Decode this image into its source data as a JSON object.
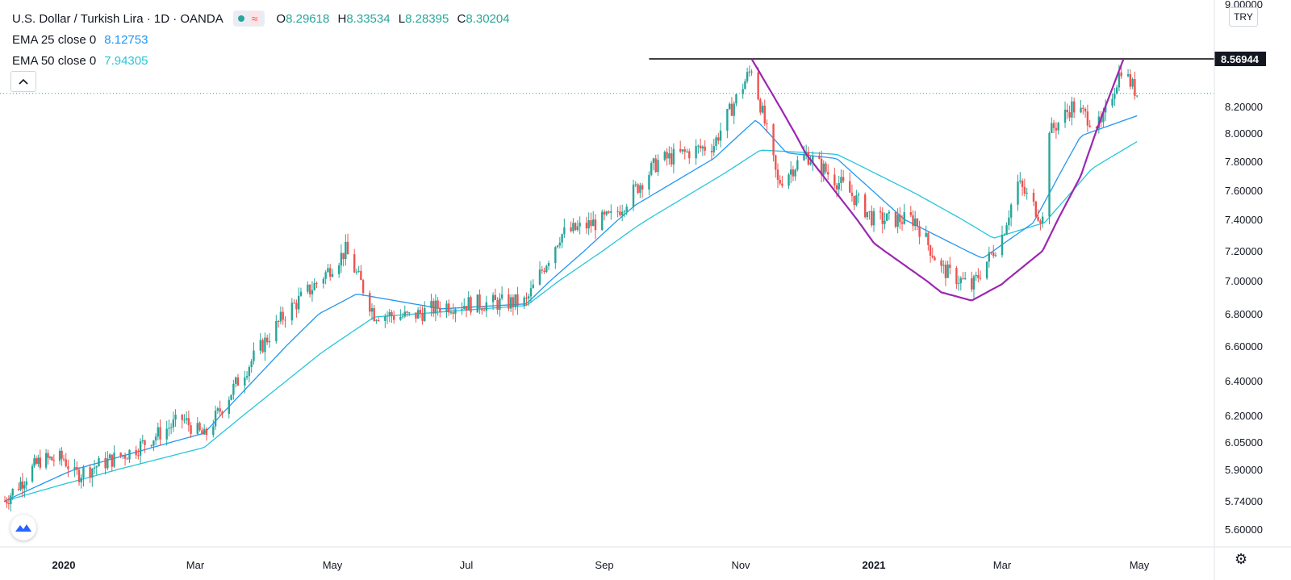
{
  "header": {
    "title": "U.S. Dollar / Turkish Lira · 1D · OANDA",
    "ohlc": [
      {
        "key": "O",
        "value": "8.29618"
      },
      {
        "key": "H",
        "value": "8.33534"
      },
      {
        "key": "L",
        "value": "8.28395"
      },
      {
        "key": "C",
        "value": "8.30204"
      }
    ]
  },
  "indicators": [
    {
      "label": "EMA 25 close 0",
      "value": "8.12753"
    },
    {
      "label": "EMA 50 close 0",
      "value": "7.94305"
    }
  ],
  "currency": "TRY",
  "resistance_label": "8.56944",
  "colors": {
    "up": "#26a69a",
    "down": "#ef5350",
    "ema25": "#2196f3",
    "ema50": "#26c6da",
    "cup": "#9c27b0",
    "resistance": "#000000"
  },
  "icons": [
    "chevron-up-icon",
    "tradingview-logo-icon",
    "gear-icon"
  ],
  "chart_data": {
    "type": "candlestick",
    "symbol": "USD/TRY",
    "x_tick_labels": [
      "2020",
      "Mar",
      "May",
      "Jul",
      "Sep",
      "Nov",
      "2021",
      "Mar",
      "May"
    ],
    "y_tick_labels": [
      "9.00000",
      "8.20000",
      "8.00000",
      "7.80000",
      "7.60000",
      "7.40000",
      "7.20000",
      "7.00000",
      "6.80000",
      "6.60000",
      "6.40000",
      "6.20000",
      "6.05000",
      "5.90000",
      "5.74000",
      "5.60000"
    ],
    "ylim": [
      5.6,
      9.0
    ],
    "resistance": 8.56944,
    "last_close": 8.30204,
    "price_path": [
      [
        "2019-12-02",
        5.74
      ],
      [
        "2019-12-20",
        5.95
      ],
      [
        "2020-01-01",
        5.96
      ],
      [
        "2020-01-06",
        5.87
      ],
      [
        "2020-02-01",
        6.0
      ],
      [
        "2020-02-24",
        6.18
      ],
      [
        "2020-03-05",
        6.08
      ],
      [
        "2020-03-20",
        6.4
      ],
      [
        "2020-04-10",
        6.8
      ],
      [
        "2020-04-25",
        7.0
      ],
      [
        "2020-05-07",
        7.2
      ],
      [
        "2020-05-20",
        6.8
      ],
      [
        "2020-06-05",
        6.78
      ],
      [
        "2020-06-20",
        6.85
      ],
      [
        "2020-07-01",
        6.86
      ],
      [
        "2020-07-28",
        6.87
      ],
      [
        "2020-08-12",
        7.3
      ],
      [
        "2020-09-05",
        7.42
      ],
      [
        "2020-09-25",
        7.8
      ],
      [
        "2020-10-20",
        7.92
      ],
      [
        "2020-11-06",
        8.5
      ],
      [
        "2020-11-18",
        7.65
      ],
      [
        "2020-12-01",
        7.85
      ],
      [
        "2020-12-20",
        7.6
      ],
      [
        "2021-01-01",
        7.4
      ],
      [
        "2021-01-20",
        7.4
      ],
      [
        "2021-02-01",
        7.08
      ],
      [
        "2021-02-15",
        6.96
      ],
      [
        "2021-03-01",
        7.3
      ],
      [
        "2021-03-08",
        7.65
      ],
      [
        "2021-03-19",
        7.4
      ],
      [
        "2021-03-22",
        8.0
      ],
      [
        "2021-04-01",
        8.2
      ],
      [
        "2021-04-14",
        8.05
      ],
      [
        "2021-04-23",
        8.5
      ],
      [
        "2021-04-30",
        8.3
      ]
    ],
    "ema25_path": [
      [
        "2019-12-02",
        5.74
      ],
      [
        "2020-01-06",
        5.9
      ],
      [
        "2020-03-05",
        6.1
      ],
      [
        "2020-04-25",
        6.8
      ],
      [
        "2020-05-12",
        6.92
      ],
      [
        "2020-06-20",
        6.83
      ],
      [
        "2020-07-28",
        6.86
      ],
      [
        "2020-09-15",
        7.5
      ],
      [
        "2020-10-20",
        7.82
      ],
      [
        "2020-11-08",
        8.1
      ],
      [
        "2020-11-22",
        7.86
      ],
      [
        "2020-12-15",
        7.82
      ],
      [
        "2021-01-15",
        7.4
      ],
      [
        "2021-02-20",
        7.15
      ],
      [
        "2021-03-15",
        7.38
      ],
      [
        "2021-04-05",
        7.98
      ],
      [
        "2021-04-30",
        8.13
      ]
    ],
    "ema50_path": [
      [
        "2019-12-02",
        5.74
      ],
      [
        "2020-01-06",
        5.84
      ],
      [
        "2020-03-05",
        6.02
      ],
      [
        "2020-04-25",
        6.55
      ],
      [
        "2020-05-20",
        6.78
      ],
      [
        "2020-07-28",
        6.85
      ],
      [
        "2020-09-15",
        7.35
      ],
      [
        "2020-10-25",
        7.72
      ],
      [
        "2020-11-10",
        7.88
      ],
      [
        "2020-12-15",
        7.85
      ],
      [
        "2021-01-20",
        7.58
      ],
      [
        "2021-02-25",
        7.28
      ],
      [
        "2021-03-20",
        7.38
      ],
      [
        "2021-04-10",
        7.75
      ],
      [
        "2021-04-30",
        7.94
      ]
    ],
    "cup_curve": [
      [
        "2020-11-06",
        8.56944
      ],
      [
        "2020-12-01",
        7.85
      ],
      [
        "2021-01-01",
        7.25
      ],
      [
        "2021-02-01",
        6.93
      ],
      [
        "2021-02-15",
        6.88
      ],
      [
        "2021-03-01",
        6.98
      ],
      [
        "2021-03-19",
        7.2
      ],
      [
        "2021-04-05",
        7.7
      ],
      [
        "2021-04-24",
        8.56944
      ]
    ]
  }
}
